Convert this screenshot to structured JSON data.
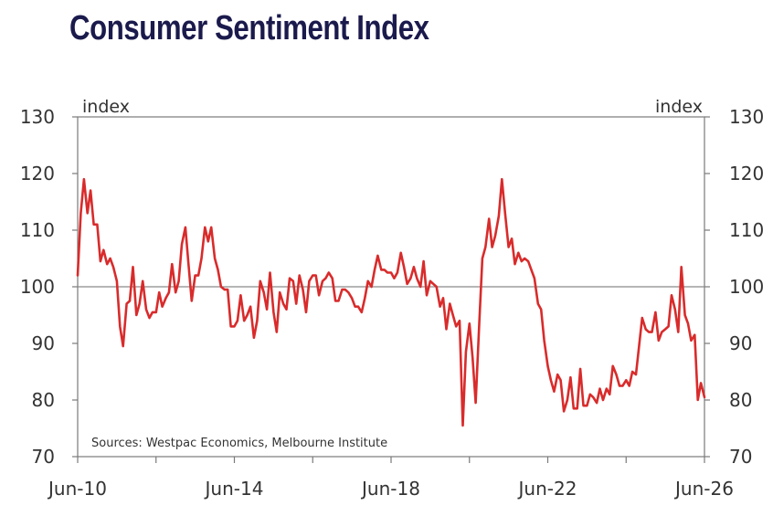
{
  "chart_data": {
    "type": "line",
    "title": "Consumer Sentiment Index",
    "ylabel_left": "index",
    "ylabel_right": "index",
    "source": "Sources: Westpac Economics, Melbourne Institute",
    "ylim": [
      70,
      130
    ],
    "yticks": [
      "70",
      "80",
      "90",
      "100",
      "110",
      "120",
      "130"
    ],
    "xlim": [
      2010.42,
      2026.42
    ],
    "xticks": [
      {
        "x": 2010.42,
        "label": "Jun-10"
      },
      {
        "x": 2014.42,
        "label": "Jun-14"
      },
      {
        "x": 2018.42,
        "label": "Jun-18"
      },
      {
        "x": 2022.42,
        "label": "Jun-22"
      },
      {
        "x": 2026.42,
        "label": "Jun-26"
      }
    ],
    "minor_xticks": [
      2012.42,
      2016.42,
      2020.42,
      2024.42
    ],
    "reference_line": 100,
    "series_color": "#d92b2b",
    "series": [
      {
        "points": [
          [
            2010.42,
            102
          ],
          [
            2010.5,
            113
          ],
          [
            2010.58,
            119
          ],
          [
            2010.67,
            113
          ],
          [
            2010.75,
            117
          ],
          [
            2010.83,
            111
          ],
          [
            2010.92,
            111
          ],
          [
            2011.0,
            104.5
          ],
          [
            2011.08,
            106.5
          ],
          [
            2011.17,
            104
          ],
          [
            2011.25,
            105
          ],
          [
            2011.33,
            103.5
          ],
          [
            2011.42,
            101
          ],
          [
            2011.5,
            93
          ],
          [
            2011.58,
            89.5
          ],
          [
            2011.67,
            97
          ],
          [
            2011.75,
            97.5
          ],
          [
            2011.83,
            103.5
          ],
          [
            2011.92,
            95
          ],
          [
            2012.0,
            97
          ],
          [
            2012.08,
            101
          ],
          [
            2012.17,
            96
          ],
          [
            2012.25,
            94.5
          ],
          [
            2012.33,
            95.5
          ],
          [
            2012.42,
            95.5
          ],
          [
            2012.5,
            99
          ],
          [
            2012.58,
            96.5
          ],
          [
            2012.67,
            98
          ],
          [
            2012.75,
            99
          ],
          [
            2012.83,
            104
          ],
          [
            2012.92,
            99
          ],
          [
            2013.0,
            101
          ],
          [
            2013.08,
            107.5
          ],
          [
            2013.17,
            110.5
          ],
          [
            2013.25,
            104
          ],
          [
            2013.33,
            97.5
          ],
          [
            2013.42,
            102
          ],
          [
            2013.5,
            102
          ],
          [
            2013.58,
            105
          ],
          [
            2013.67,
            110.5
          ],
          [
            2013.75,
            108
          ],
          [
            2013.83,
            110.5
          ],
          [
            2013.92,
            105
          ],
          [
            2014.0,
            103
          ],
          [
            2014.08,
            100
          ],
          [
            2014.17,
            99.5
          ],
          [
            2014.25,
            99.5
          ],
          [
            2014.33,
            93
          ],
          [
            2014.42,
            93
          ],
          [
            2014.5,
            94
          ],
          [
            2014.58,
            98.5
          ],
          [
            2014.67,
            94
          ],
          [
            2014.75,
            95
          ],
          [
            2014.83,
            96.5
          ],
          [
            2014.92,
            91
          ],
          [
            2015.0,
            94
          ],
          [
            2015.08,
            101
          ],
          [
            2015.17,
            99
          ],
          [
            2015.25,
            96
          ],
          [
            2015.33,
            102.5
          ],
          [
            2015.42,
            95.5
          ],
          [
            2015.5,
            92
          ],
          [
            2015.58,
            99
          ],
          [
            2015.67,
            97
          ],
          [
            2015.75,
            96
          ],
          [
            2015.83,
            101.5
          ],
          [
            2015.92,
            101
          ],
          [
            2016.0,
            97
          ],
          [
            2016.08,
            102
          ],
          [
            2016.17,
            99.5
          ],
          [
            2016.25,
            95.5
          ],
          [
            2016.33,
            101
          ],
          [
            2016.42,
            102
          ],
          [
            2016.5,
            102
          ],
          [
            2016.58,
            98.5
          ],
          [
            2016.67,
            101
          ],
          [
            2016.75,
            101.5
          ],
          [
            2016.83,
            102.5
          ],
          [
            2016.92,
            101.5
          ],
          [
            2017.0,
            97.5
          ],
          [
            2017.08,
            97.5
          ],
          [
            2017.17,
            99.5
          ],
          [
            2017.25,
            99.5
          ],
          [
            2017.33,
            99
          ],
          [
            2017.42,
            98
          ],
          [
            2017.5,
            96.5
          ],
          [
            2017.58,
            96.5
          ],
          [
            2017.67,
            95.5
          ],
          [
            2017.75,
            98
          ],
          [
            2017.83,
            101
          ],
          [
            2017.92,
            100
          ],
          [
            2018.0,
            103
          ],
          [
            2018.08,
            105.5
          ],
          [
            2018.17,
            103
          ],
          [
            2018.25,
            103
          ],
          [
            2018.33,
            102.5
          ],
          [
            2018.42,
            102.5
          ],
          [
            2018.5,
            101.5
          ],
          [
            2018.58,
            102.5
          ],
          [
            2018.67,
            106
          ],
          [
            2018.75,
            103.5
          ],
          [
            2018.83,
            100.5
          ],
          [
            2018.92,
            101.5
          ],
          [
            2019.0,
            103.5
          ],
          [
            2019.08,
            101.5
          ],
          [
            2019.17,
            100
          ],
          [
            2019.25,
            104.5
          ],
          [
            2019.33,
            98.5
          ],
          [
            2019.42,
            101
          ],
          [
            2019.5,
            100.5
          ],
          [
            2019.58,
            100
          ],
          [
            2019.67,
            96.5
          ],
          [
            2019.75,
            98
          ],
          [
            2019.83,
            92.5
          ],
          [
            2019.92,
            97
          ],
          [
            2020.0,
            95
          ],
          [
            2020.08,
            93
          ],
          [
            2020.17,
            94
          ],
          [
            2020.25,
            75.5
          ],
          [
            2020.33,
            88.5
          ],
          [
            2020.42,
            93.5
          ],
          [
            2020.5,
            87.5
          ],
          [
            2020.58,
            79.5
          ],
          [
            2020.67,
            93.5
          ],
          [
            2020.75,
            105
          ],
          [
            2020.83,
            107
          ],
          [
            2020.92,
            112
          ],
          [
            2021.0,
            107
          ],
          [
            2021.08,
            109
          ],
          [
            2021.17,
            112.5
          ],
          [
            2021.25,
            119
          ],
          [
            2021.33,
            113
          ],
          [
            2021.42,
            107
          ],
          [
            2021.5,
            108.5
          ],
          [
            2021.58,
            104
          ],
          [
            2021.67,
            106
          ],
          [
            2021.75,
            104.5
          ],
          [
            2021.83,
            105
          ],
          [
            2021.92,
            104.5
          ],
          [
            2022.0,
            103
          ],
          [
            2022.08,
            101.5
          ],
          [
            2022.17,
            97
          ],
          [
            2022.25,
            96
          ],
          [
            2022.33,
            90.5
          ],
          [
            2022.42,
            86
          ],
          [
            2022.5,
            83.5
          ],
          [
            2022.58,
            81.5
          ],
          [
            2022.67,
            84.5
          ],
          [
            2022.75,
            83.5
          ],
          [
            2022.83,
            78
          ],
          [
            2022.92,
            80
          ],
          [
            2023.0,
            84
          ],
          [
            2023.08,
            78.5
          ],
          [
            2023.17,
            78.5
          ],
          [
            2023.25,
            85.5
          ],
          [
            2023.33,
            79
          ],
          [
            2023.42,
            79
          ],
          [
            2023.5,
            81
          ],
          [
            2023.58,
            80.5
          ],
          [
            2023.67,
            79.5
          ],
          [
            2023.75,
            82
          ],
          [
            2023.83,
            80
          ],
          [
            2023.92,
            82
          ],
          [
            2024.0,
            81
          ],
          [
            2024.08,
            86
          ],
          [
            2024.17,
            84.5
          ],
          [
            2024.25,
            82.5
          ],
          [
            2024.33,
            82.5
          ],
          [
            2024.42,
            83.5
          ],
          [
            2024.5,
            82.5
          ],
          [
            2024.58,
            85
          ],
          [
            2024.67,
            84.5
          ],
          [
            2024.75,
            89.5
          ],
          [
            2024.83,
            94.5
          ],
          [
            2024.92,
            92.5
          ],
          [
            2025.0,
            92
          ],
          [
            2025.08,
            92
          ],
          [
            2025.17,
            95.5
          ],
          [
            2025.25,
            90.5
          ],
          [
            2025.33,
            92
          ],
          [
            2025.42,
            92.5
          ],
          [
            2025.5,
            93
          ],
          [
            2025.58,
            98.5
          ],
          [
            2025.67,
            96
          ],
          [
            2025.75,
            92
          ],
          [
            2025.83,
            103.5
          ],
          [
            2025.92,
            95
          ],
          [
            2026.0,
            93.5
          ],
          [
            2026.08,
            90.5
          ],
          [
            2026.17,
            91.5
          ],
          [
            2026.25,
            80
          ],
          [
            2026.33,
            83
          ],
          [
            2026.42,
            80.5
          ]
        ]
      }
    ]
  }
}
